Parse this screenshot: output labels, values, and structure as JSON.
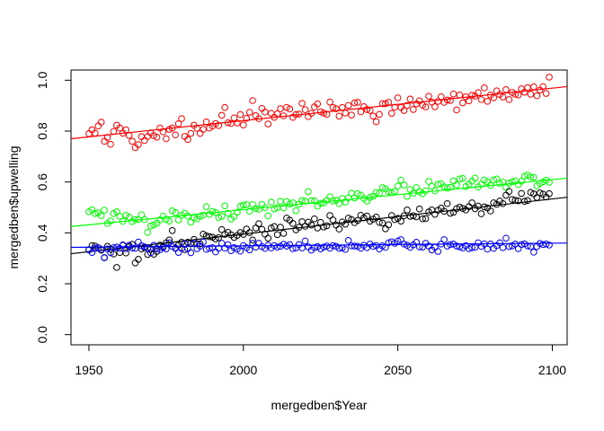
{
  "chart_data": {
    "type": "scatter",
    "title": "",
    "xlabel": "mergedben$Year",
    "ylabel": "mergedben$upwelling",
    "xlim": [
      1944.2,
      2104.8
    ],
    "ylim": [
      -0.04,
      1.04
    ],
    "xticks": [
      1950,
      2000,
      2050,
      2100
    ],
    "yticks": [
      0.0,
      0.2,
      0.4,
      0.6,
      0.8,
      1.0
    ],
    "xtick_labels": [
      "1950",
      "2000",
      "2050",
      "2100"
    ],
    "ytick_labels": [
      "0.0",
      "0.2",
      "0.4",
      "0.6",
      "0.8",
      "1.0"
    ],
    "legend": "none",
    "grid": false,
    "x": [
      1950,
      1951,
      1952,
      1953,
      1954,
      1955,
      1956,
      1957,
      1958,
      1959,
      1960,
      1961,
      1962,
      1963,
      1964,
      1965,
      1966,
      1967,
      1968,
      1969,
      1970,
      1971,
      1972,
      1973,
      1974,
      1975,
      1976,
      1977,
      1978,
      1979,
      1980,
      1981,
      1982,
      1983,
      1984,
      1985,
      1986,
      1987,
      1988,
      1989,
      1990,
      1991,
      1992,
      1993,
      1994,
      1995,
      1996,
      1997,
      1998,
      1999,
      2000,
      2001,
      2002,
      2003,
      2004,
      2005,
      2006,
      2007,
      2008,
      2009,
      2010,
      2011,
      2012,
      2013,
      2014,
      2015,
      2016,
      2017,
      2018,
      2019,
      2020,
      2021,
      2022,
      2023,
      2024,
      2025,
      2026,
      2027,
      2028,
      2029,
      2030,
      2031,
      2032,
      2033,
      2034,
      2035,
      2036,
      2037,
      2038,
      2039,
      2040,
      2041,
      2042,
      2043,
      2044,
      2045,
      2046,
      2047,
      2048,
      2049,
      2050,
      2051,
      2052,
      2053,
      2054,
      2055,
      2056,
      2057,
      2058,
      2059,
      2060,
      2061,
      2062,
      2063,
      2064,
      2065,
      2066,
      2067,
      2068,
      2069,
      2070,
      2071,
      2072,
      2073,
      2074,
      2075,
      2076,
      2077,
      2078,
      2079,
      2080,
      2081,
      2082,
      2083,
      2084,
      2085,
      2086,
      2087,
      2088,
      2089,
      2090,
      2091,
      2092,
      2093,
      2094,
      2095,
      2096,
      2097,
      2098,
      2099
    ],
    "series": [
      {
        "color": "#ff0000",
        "values": [
          0.79,
          0.805,
          0.792,
          0.82,
          0.835,
          0.76,
          0.775,
          0.748,
          0.799,
          0.823,
          0.812,
          0.792,
          0.805,
          0.783,
          0.76,
          0.735,
          0.747,
          0.778,
          0.763,
          0.779,
          0.793,
          0.782,
          0.776,
          0.812,
          0.797,
          0.77,
          0.807,
          0.812,
          0.785,
          0.829,
          0.849,
          0.779,
          0.767,
          0.791,
          0.823,
          0.811,
          0.791,
          0.807,
          0.836,
          0.812,
          0.82,
          0.83,
          0.822,
          0.862,
          0.893,
          0.833,
          0.83,
          0.852,
          0.832,
          0.865,
          0.824,
          0.85,
          0.874,
          0.92,
          0.861,
          0.849,
          0.889,
          0.875,
          0.828,
          0.87,
          0.854,
          0.868,
          0.888,
          0.86,
          0.893,
          0.887,
          0.854,
          0.865,
          0.867,
          0.909,
          0.884,
          0.857,
          0.87,
          0.895,
          0.907,
          0.876,
          0.871,
          0.866,
          0.914,
          0.893,
          0.888,
          0.859,
          0.893,
          0.871,
          0.901,
          0.863,
          0.911,
          0.913,
          0.876,
          0.896,
          0.885,
          0.881,
          0.859,
          0.837,
          0.866,
          0.908,
          0.908,
          0.913,
          0.87,
          0.894,
          0.931,
          0.893,
          0.881,
          0.901,
          0.926,
          0.885,
          0.907,
          0.919,
          0.902,
          0.895,
          0.937,
          0.914,
          0.896,
          0.917,
          0.935,
          0.913,
          0.922,
          0.92,
          0.946,
          0.883,
          0.942,
          0.911,
          0.935,
          0.919,
          0.941,
          0.938,
          0.951,
          0.924,
          0.97,
          0.917,
          0.942,
          0.931,
          0.958,
          0.944,
          0.934,
          0.963,
          0.924,
          0.952,
          0.945,
          0.942,
          0.966,
          0.953,
          0.971,
          0.945,
          0.974,
          0.939,
          0.961,
          0.975,
          0.948,
          1.012
        ],
        "fit": [
          0.77,
          0.975
        ]
      },
      {
        "color": "#00ff00",
        "values": [
          0.483,
          0.491,
          0.476,
          0.479,
          0.468,
          0.489,
          0.437,
          0.447,
          0.476,
          0.483,
          0.465,
          0.445,
          0.469,
          0.462,
          0.444,
          0.452,
          0.452,
          0.471,
          0.452,
          0.402,
          0.427,
          0.431,
          0.438,
          0.451,
          0.466,
          0.453,
          0.446,
          0.487,
          0.48,
          0.451,
          0.469,
          0.477,
          0.466,
          0.442,
          0.459,
          0.455,
          0.465,
          0.47,
          0.503,
          0.473,
          0.484,
          0.48,
          0.46,
          0.465,
          0.506,
          0.477,
          0.454,
          0.464,
          0.481,
          0.505,
          0.509,
          0.511,
          0.485,
          0.511,
          0.496,
          0.493,
          0.512,
          0.499,
          0.467,
          0.521,
          0.494,
          0.499,
          0.524,
          0.498,
          0.523,
          0.513,
          0.518,
          0.487,
          0.513,
          0.527,
          0.524,
          0.562,
          0.527,
          0.526,
          0.505,
          0.516,
          0.518,
          0.528,
          0.542,
          0.525,
          0.528,
          0.515,
          0.535,
          0.521,
          0.538,
          0.556,
          0.537,
          0.554,
          0.548,
          0.535,
          0.525,
          0.539,
          0.544,
          0.559,
          0.556,
          0.578,
          0.573,
          0.562,
          0.558,
          0.563,
          0.584,
          0.607,
          0.588,
          0.543,
          0.57,
          0.556,
          0.578,
          0.562,
          0.554,
          0.565,
          0.602,
          0.583,
          0.565,
          0.591,
          0.593,
          0.581,
          0.576,
          0.579,
          0.604,
          0.589,
          0.612,
          0.614,
          0.582,
          0.591,
          0.603,
          0.615,
          0.581,
          0.591,
          0.608,
          0.6,
          0.587,
          0.608,
          0.612,
          0.594,
          0.6,
          0.578,
          0.595,
          0.601,
          0.604,
          0.59,
          0.603,
          0.623,
          0.627,
          0.62,
          0.618,
          0.585,
          0.594,
          0.601,
          0.607,
          0.599
        ],
        "fit": [
          0.425,
          0.615
        ]
      },
      {
        "color": "#000000",
        "values": [
          0.333,
          0.35,
          0.348,
          0.341,
          0.332,
          0.302,
          0.347,
          0.336,
          0.317,
          0.264,
          0.323,
          0.351,
          0.321,
          0.346,
          0.355,
          0.282,
          0.296,
          0.337,
          0.342,
          0.315,
          0.338,
          0.316,
          0.327,
          0.352,
          0.346,
          0.361,
          0.372,
          0.409,
          0.341,
          0.352,
          0.363,
          0.334,
          0.363,
          0.359,
          0.374,
          0.357,
          0.357,
          0.395,
          0.388,
          0.385,
          0.383,
          0.376,
          0.381,
          0.413,
          0.394,
          0.402,
          0.392,
          0.382,
          0.39,
          0.401,
          0.394,
          0.415,
          0.401,
          0.372,
          0.419,
          0.436,
          0.414,
          0.395,
          0.379,
          0.419,
          0.425,
          0.393,
          0.422,
          0.398,
          0.458,
          0.45,
          0.437,
          0.412,
          0.422,
          0.444,
          0.426,
          0.442,
          0.431,
          0.455,
          0.419,
          0.441,
          0.423,
          0.428,
          0.468,
          0.451,
          0.431,
          0.415,
          0.443,
          0.434,
          0.458,
          0.452,
          0.44,
          0.449,
          0.469,
          0.459,
          0.466,
          0.446,
          0.454,
          0.462,
          0.441,
          0.439,
          0.416,
          0.432,
          0.468,
          0.452,
          0.457,
          0.446,
          0.467,
          0.49,
          0.465,
          0.467,
          0.463,
          0.494,
          0.455,
          0.456,
          0.482,
          0.49,
          0.473,
          0.489,
          0.497,
          0.485,
          0.515,
          0.477,
          0.481,
          0.495,
          0.501,
          0.496,
          0.49,
          0.503,
          0.518,
          0.495,
          0.505,
          0.475,
          0.502,
          0.498,
          0.486,
          0.518,
          0.512,
          0.525,
          0.515,
          0.548,
          0.563,
          0.531,
          0.528,
          0.526,
          0.555,
          0.524,
          0.527,
          0.559,
          0.553,
          0.539,
          0.557,
          0.552,
          0.541,
          0.554
        ],
        "fit": [
          0.318,
          0.54
        ]
      },
      {
        "color": "#0000ff",
        "values": [
          0.334,
          0.323,
          0.339,
          0.342,
          0.335,
          0.303,
          0.337,
          0.322,
          0.342,
          0.344,
          0.339,
          0.353,
          0.338,
          0.351,
          0.34,
          0.339,
          0.364,
          0.349,
          0.345,
          0.339,
          0.322,
          0.351,
          0.339,
          0.334,
          0.342,
          0.337,
          0.361,
          0.347,
          0.339,
          0.323,
          0.339,
          0.356,
          0.338,
          0.322,
          0.359,
          0.338,
          0.348,
          0.364,
          0.335,
          0.339,
          0.342,
          0.325,
          0.339,
          0.359,
          0.34,
          0.354,
          0.33,
          0.342,
          0.336,
          0.328,
          0.35,
          0.342,
          0.333,
          0.359,
          0.344,
          0.359,
          0.346,
          0.339,
          0.351,
          0.341,
          0.35,
          0.344,
          0.347,
          0.355,
          0.348,
          0.354,
          0.338,
          0.341,
          0.354,
          0.341,
          0.368,
          0.345,
          0.332,
          0.342,
          0.346,
          0.337,
          0.344,
          0.348,
          0.34,
          0.35,
          0.347,
          0.339,
          0.341,
          0.335,
          0.37,
          0.349,
          0.348,
          0.347,
          0.34,
          0.351,
          0.342,
          0.356,
          0.347,
          0.35,
          0.337,
          0.349,
          0.343,
          0.361,
          0.365,
          0.359,
          0.368,
          0.373,
          0.356,
          0.351,
          0.343,
          0.353,
          0.363,
          0.345,
          0.344,
          0.359,
          0.348,
          0.333,
          0.343,
          0.327,
          0.356,
          0.373,
          0.348,
          0.354,
          0.356,
          0.348,
          0.345,
          0.341,
          0.35,
          0.338,
          0.342,
          0.343,
          0.361,
          0.347,
          0.357,
          0.336,
          0.356,
          0.339,
          0.35,
          0.361,
          0.342,
          0.379,
          0.346,
          0.349,
          0.356,
          0.338,
          0.354,
          0.357,
          0.349,
          0.346,
          0.324,
          0.346,
          0.358,
          0.354,
          0.356,
          0.352
        ],
        "fit": [
          0.343,
          0.36
        ]
      }
    ]
  }
}
